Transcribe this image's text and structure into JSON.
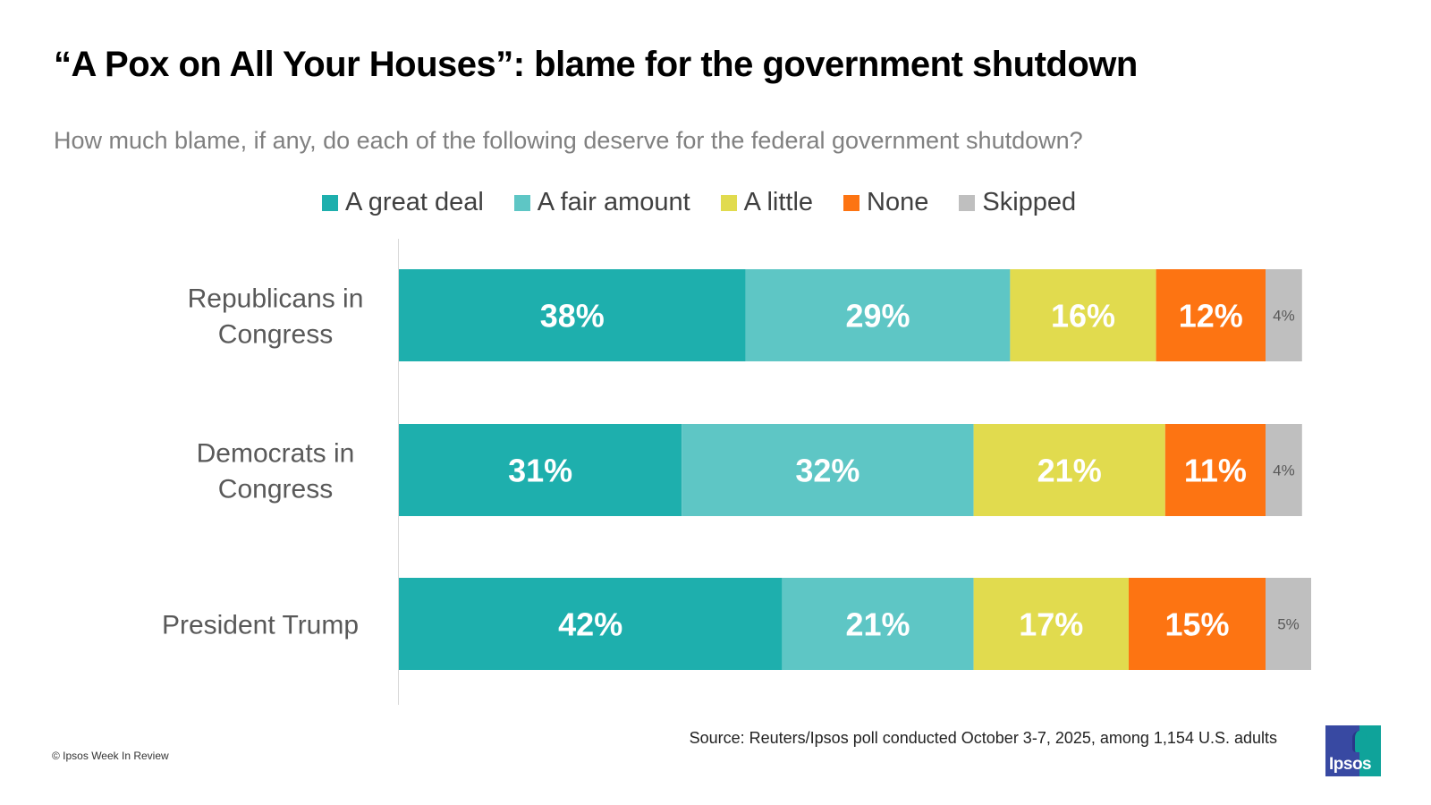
{
  "header": {
    "title": "“A Pox on All Your Houses”: blame for the government shutdown",
    "subtitle": "How much blame, if any, do each of the following deserve for the federal government shutdown?"
  },
  "footer": {
    "copyright": "© Ipsos Week In Review",
    "source": "Source: Reuters/Ipsos poll conducted October 3-7, 2025, among 1,154 U.S. adults",
    "logo_text": "Ipsos"
  },
  "chart_data": {
    "type": "bar",
    "orientation": "horizontal",
    "stacked": true,
    "normalized_to": 100,
    "title": "“A Pox on All Your Houses”: blame for the government shutdown",
    "subtitle": "How much blame, if any, do each of the following deserve for the federal government shutdown?",
    "xlabel": "",
    "ylabel": "",
    "xlim": [
      0,
      100
    ],
    "grid": false,
    "legend_position": "top-center",
    "categories": [
      "Republicans in Congress",
      "Democrats in Congress",
      "President Trump"
    ],
    "category_lines": [
      [
        "Republicans in",
        "Congress"
      ],
      [
        "Democrats in",
        "Congress"
      ],
      [
        "President Trump"
      ]
    ],
    "series": [
      {
        "name": "A great deal",
        "color": "#1eafad",
        "label_color": "#ffffff",
        "values": [
          38,
          31,
          42
        ],
        "labels": [
          "38%",
          "31%",
          "42%"
        ]
      },
      {
        "name": "A fair amount",
        "color": "#5ec6c5",
        "label_color": "#ffffff",
        "values": [
          29,
          32,
          21
        ],
        "labels": [
          "29%",
          "32%",
          "21%"
        ]
      },
      {
        "name": "A little",
        "color": "#e1db4e",
        "label_color": "#ffffff",
        "values": [
          16,
          21,
          17
        ],
        "labels": [
          "16%",
          "21%",
          "17%"
        ]
      },
      {
        "name": "None",
        "color": "#fd7412",
        "label_color": "#ffffff",
        "values": [
          12,
          11,
          15
        ],
        "labels": [
          "12%",
          "11%",
          "15%"
        ]
      },
      {
        "name": "Skipped",
        "color": "#bfbfbf",
        "label_color": "#595959",
        "values": [
          4,
          4,
          5
        ],
        "labels": [
          "4%",
          "4%",
          "5%"
        ]
      }
    ]
  }
}
